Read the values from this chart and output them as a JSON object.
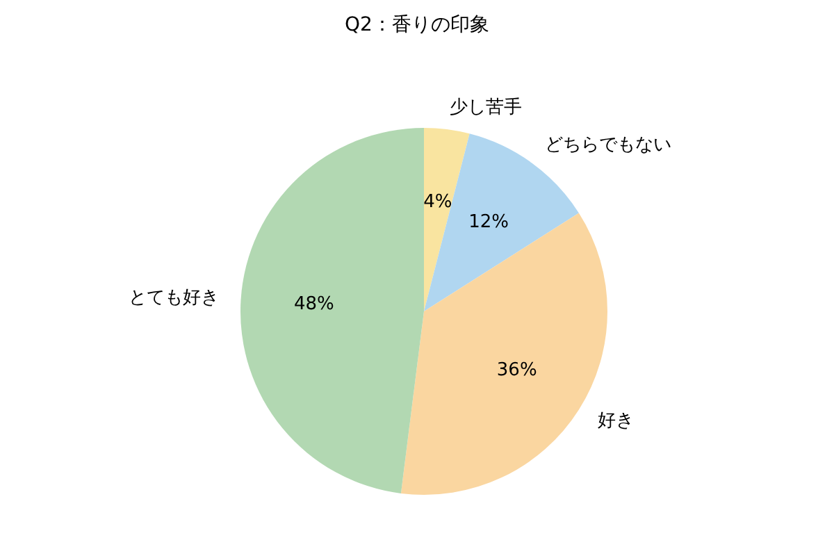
{
  "chart_data": {
    "type": "pie",
    "title": "Q2：香りの印象",
    "categories": [
      "少し苦手",
      "どちらでもない",
      "好き",
      "とても好き"
    ],
    "values": [
      4,
      12,
      36,
      48
    ],
    "value_labels": [
      "4%",
      "12%",
      "36%",
      "48%"
    ],
    "colors": [
      "#f9e4a0",
      "#b0d6f0",
      "#fad6a0",
      "#b2d8b2"
    ],
    "legend": false
  }
}
